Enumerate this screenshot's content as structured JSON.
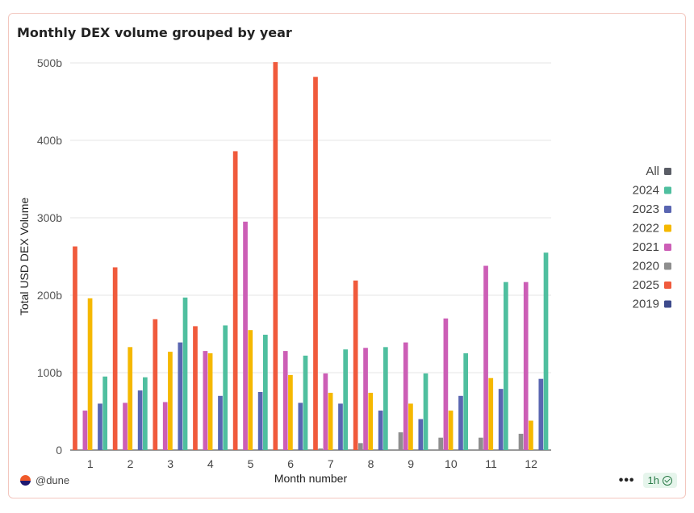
{
  "card": {
    "title": "Monthly DEX volume grouped by year",
    "attribution": "@dune",
    "more_icon": "more-horizontal-icon",
    "refresh_label": "1h",
    "refresh_icon": "check-circle-icon"
  },
  "chart_data": {
    "type": "bar",
    "title": "Monthly DEX volume grouped by year",
    "xlabel": "Month number",
    "ylabel": "Total USD DEX Volume",
    "categories": [
      "1",
      "2",
      "3",
      "4",
      "5",
      "6",
      "7",
      "8",
      "9",
      "10",
      "11",
      "12"
    ],
    "ylim": [
      0,
      500
    ],
    "yticks": [
      0,
      100,
      200,
      300,
      400,
      500
    ],
    "ytick_labels": [
      "0",
      "100b",
      "200b",
      "300b",
      "400b",
      "500b"
    ],
    "grid": true,
    "legend_position": "right",
    "bar_order": [
      "2025",
      "2020",
      "2021",
      "2022",
      "2019",
      "2023",
      "2024"
    ],
    "series": [
      {
        "name": "All",
        "color": "#5a5d66",
        "values": [
          null,
          null,
          null,
          null,
          null,
          null,
          null,
          null,
          null,
          null,
          null,
          null
        ]
      },
      {
        "name": "2024",
        "color": "#4fbf9f",
        "values": [
          95,
          94,
          197,
          161,
          149,
          122,
          130,
          133,
          99,
          125,
          217,
          255
        ]
      },
      {
        "name": "2023",
        "color": "#5965b1",
        "values": [
          60,
          77,
          139,
          70,
          75,
          61,
          60,
          51,
          40,
          70,
          79,
          92
        ]
      },
      {
        "name": "2022",
        "color": "#f5b800",
        "values": [
          196,
          133,
          127,
          125,
          155,
          97,
          74,
          74,
          60,
          51,
          93,
          38
        ]
      },
      {
        "name": "2021",
        "color": "#cc5eb6",
        "values": [
          51,
          61,
          62,
          128,
          295,
          128,
          99,
          132,
          139,
          170,
          238,
          217
        ]
      },
      {
        "name": "2020",
        "color": "#8e8e8e",
        "values": [
          0,
          0,
          0,
          0,
          0,
          0,
          2,
          9,
          23,
          16,
          16,
          21
        ]
      },
      {
        "name": "2025",
        "color": "#f05a3c",
        "values": [
          263,
          236,
          169,
          160,
          386,
          501,
          482,
          219,
          null,
          null,
          null,
          null
        ]
      },
      {
        "name": "2019",
        "color": "#3d4a8c",
        "values": [
          null,
          null,
          null,
          null,
          null,
          null,
          null,
          null,
          null,
          null,
          null,
          null
        ]
      }
    ]
  }
}
